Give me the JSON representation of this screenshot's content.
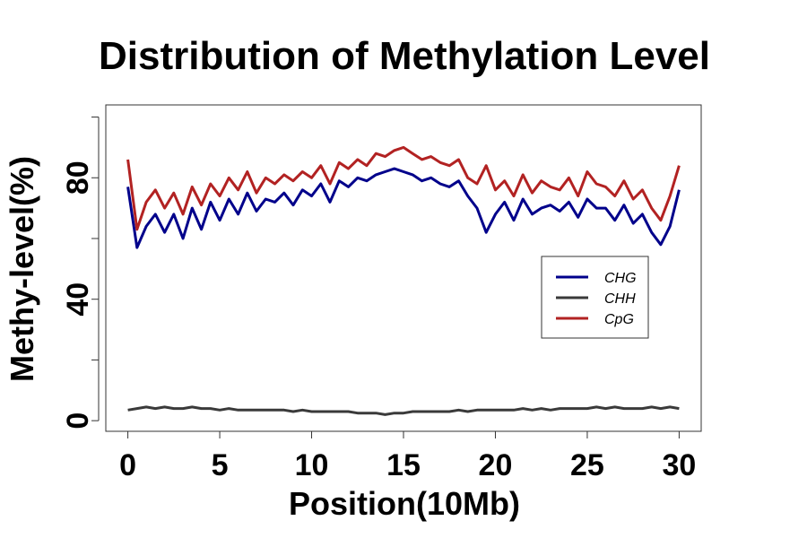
{
  "chart_data": {
    "type": "line",
    "title": "Distribution of Methylation Level",
    "xlabel": "Position(10Mb)",
    "ylabel": "Methy-level(%)",
    "xlim": [
      -1.2,
      31.2
    ],
    "ylim": [
      -3.5,
      104
    ],
    "xticks": [
      0,
      5,
      10,
      15,
      20,
      25,
      30
    ],
    "yticks": [
      0,
      20,
      40,
      60,
      80,
      100
    ],
    "yticklabels": [
      "0",
      "",
      "40",
      "",
      "80",
      ""
    ],
    "grid": false,
    "legend_position": "right",
    "x": [
      0,
      0.5,
      1,
      1.5,
      2,
      2.5,
      3,
      3.5,
      4,
      4.5,
      5,
      5.5,
      6,
      6.5,
      7,
      7.5,
      8,
      8.5,
      9,
      9.5,
      10,
      10.5,
      11,
      11.5,
      12,
      12.5,
      13,
      13.5,
      14,
      14.5,
      15,
      15.5,
      16,
      16.5,
      17,
      17.5,
      18,
      18.5,
      19,
      19.5,
      20,
      20.5,
      21,
      21.5,
      22,
      22.5,
      23,
      23.5,
      24,
      24.5,
      25,
      25.5,
      26,
      26.5,
      27,
      27.5,
      28,
      28.5,
      29,
      29.5,
      30
    ],
    "series": [
      {
        "name": "CHG",
        "color": "#00008b",
        "values": [
          77,
          57,
          64,
          68,
          62,
          68,
          60,
          70,
          63,
          72,
          66,
          73,
          68,
          75,
          69,
          73,
          72,
          75,
          71,
          76,
          74,
          78,
          72,
          79,
          77,
          80,
          79,
          81,
          82,
          83,
          82,
          81,
          79,
          80,
          78,
          77,
          79,
          74,
          70,
          62,
          68,
          72,
          66,
          73,
          68,
          70,
          71,
          69,
          72,
          67,
          73,
          70,
          70,
          66,
          71,
          65,
          68,
          62,
          58,
          64,
          76
        ]
      },
      {
        "name": "CHH",
        "color": "#3a3a3a",
        "values": [
          3.5,
          4,
          4.5,
          4,
          4.5,
          4,
          4,
          4.5,
          4,
          4,
          3.5,
          4,
          3.5,
          3.5,
          3.5,
          3.5,
          3.5,
          3.5,
          3,
          3.5,
          3,
          3,
          3,
          3,
          3,
          2.5,
          2.5,
          2.5,
          2,
          2.5,
          2.5,
          3,
          3,
          3,
          3,
          3,
          3.5,
          3,
          3.5,
          3.5,
          3.5,
          3.5,
          3.5,
          4,
          3.5,
          4,
          3.5,
          4,
          4,
          4,
          4,
          4.5,
          4,
          4.5,
          4,
          4,
          4,
          4.5,
          4,
          4.5,
          4
        ]
      },
      {
        "name": "CpG",
        "color": "#b22222",
        "values": [
          86,
          63,
          72,
          76,
          70,
          75,
          68,
          77,
          71,
          78,
          74,
          80,
          76,
          82,
          75,
          80,
          78,
          81,
          79,
          82,
          80,
          84,
          78,
          85,
          83,
          86,
          84,
          88,
          87,
          89,
          90,
          88,
          86,
          87,
          85,
          84,
          86,
          80,
          78,
          84,
          76,
          79,
          74,
          81,
          75,
          79,
          77,
          76,
          80,
          74,
          82,
          78,
          77,
          74,
          79,
          73,
          76,
          70,
          66,
          74,
          84
        ]
      }
    ]
  }
}
